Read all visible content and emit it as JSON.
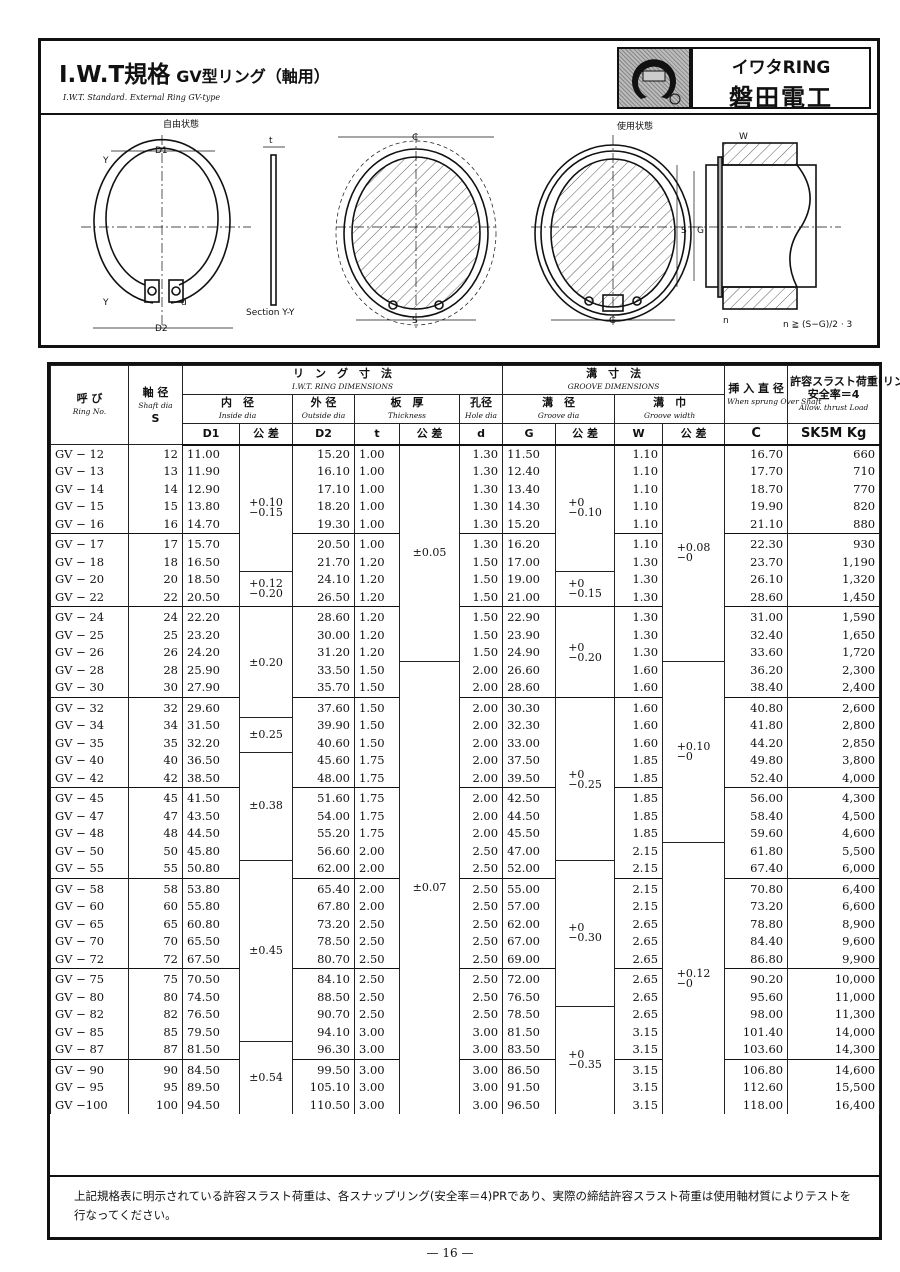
{
  "header": {
    "title": "I.W.T規格",
    "title_sub": "GV型リング（軸用）",
    "subtitle": "I.W.T. Standard. External Ring  GV-type",
    "logo_text": "I.W.T",
    "brand_line1": "イワタRING",
    "brand_line2": "磐田電工"
  },
  "diagram": {
    "free_state": "自由状態",
    "used_state": "使用状態",
    "D1": "D1",
    "D2": "D2",
    "Y": "Y",
    "t": "t",
    "d": "d",
    "section": "Section  Y-Y",
    "C": "C",
    "S": "S",
    "G": "G",
    "W": "W",
    "n": "n",
    "formula": "n ≧ (S−G)/2 · 3"
  },
  "table": {
    "h_ring": "呼 び",
    "h_ring_en": "Ring No.",
    "h_shaft": "軸 径",
    "h_shaft_en": "Shaft dia",
    "h_shaft_sym": "S",
    "h_ringdim": "リ　ン　グ　寸　法",
    "h_ringdim_en": "I.W.T. RING DIMENSIONS",
    "h_groove": "溝　寸　法",
    "h_groove_en": "GROOVE DIMENSIONS",
    "h_c": "挿 入 直 径",
    "h_c_en": "When sprung Over Shaft",
    "h_c_sym": "C",
    "h_load": "許容スラスト荷重(リング)",
    "h_load2": "安全率＝4",
    "h_load_en": "Allow. thrust Load",
    "h_load_unit": "SK5M Kg",
    "h_inside": "内　径",
    "h_inside_en": "Inside dia",
    "h_outside": "外 径",
    "h_outside_en": "Outside dia",
    "h_thick": "板　厚",
    "h_thick_en": "Thickness",
    "h_hole": "孔径",
    "h_hole_en": "Hole dia",
    "h_gdia": "溝　径",
    "h_gdia_en": "Groove dia",
    "h_gwidth": "溝　巾",
    "h_gwidth_en": "Groove width",
    "s_D1": "D1",
    "s_D2": "D2",
    "s_t": "t",
    "s_d": "d",
    "s_G": "G",
    "s_W": "W",
    "s_tol": "公 差",
    "sections": [
      5,
      4,
      5,
      5,
      5,
      5,
      5,
      3
    ],
    "rows": [
      [
        "GV − 12",
        "12",
        "11.00",
        "15.20",
        "1.00",
        "1.30",
        "11.50",
        "1.10",
        "16.70",
        "660"
      ],
      [
        "GV − 13",
        "13",
        "11.90",
        "16.10",
        "1.00",
        "1.30",
        "12.40",
        "1.10",
        "17.70",
        "710"
      ],
      [
        "GV − 14",
        "14",
        "12.90",
        "17.10",
        "1.00",
        "1.30",
        "13.40",
        "1.10",
        "18.70",
        "770"
      ],
      [
        "GV − 15",
        "15",
        "13.80",
        "18.20",
        "1.00",
        "1.30",
        "14.30",
        "1.10",
        "19.90",
        "820"
      ],
      [
        "GV − 16",
        "16",
        "14.70",
        "19.30",
        "1.00",
        "1.30",
        "15.20",
        "1.10",
        "21.10",
        "880"
      ],
      [
        "GV − 17",
        "17",
        "15.70",
        "20.50",
        "1.00",
        "1.30",
        "16.20",
        "1.10",
        "22.30",
        "930"
      ],
      [
        "GV − 18",
        "18",
        "16.50",
        "21.70",
        "1.20",
        "1.50",
        "17.00",
        "1.30",
        "23.70",
        "1,190"
      ],
      [
        "GV − 20",
        "20",
        "18.50",
        "24.10",
        "1.20",
        "1.50",
        "19.00",
        "1.30",
        "26.10",
        "1,320"
      ],
      [
        "GV − 22",
        "22",
        "20.50",
        "26.50",
        "1.20",
        "1.50",
        "21.00",
        "1.30",
        "28.60",
        "1,450"
      ],
      [
        "GV − 24",
        "24",
        "22.20",
        "28.60",
        "1.20",
        "1.50",
        "22.90",
        "1.30",
        "31.00",
        "1,590"
      ],
      [
        "GV − 25",
        "25",
        "23.20",
        "30.00",
        "1.20",
        "1.50",
        "23.90",
        "1.30",
        "32.40",
        "1,650"
      ],
      [
        "GV − 26",
        "26",
        "24.20",
        "31.20",
        "1.20",
        "1.50",
        "24.90",
        "1.30",
        "33.60",
        "1,720"
      ],
      [
        "GV − 28",
        "28",
        "25.90",
        "33.50",
        "1.50",
        "2.00",
        "26.60",
        "1.60",
        "36.20",
        "2,300"
      ],
      [
        "GV − 30",
        "30",
        "27.90",
        "35.70",
        "1.50",
        "2.00",
        "28.60",
        "1.60",
        "38.40",
        "2,400"
      ],
      [
        "GV − 32",
        "32",
        "29.60",
        "37.60",
        "1.50",
        "2.00",
        "30.30",
        "1.60",
        "40.80",
        "2,600"
      ],
      [
        "GV − 34",
        "34",
        "31.50",
        "39.90",
        "1.50",
        "2.00",
        "32.30",
        "1.60",
        "41.80",
        "2,800"
      ],
      [
        "GV − 35",
        "35",
        "32.20",
        "40.60",
        "1.50",
        "2.00",
        "33.00",
        "1.60",
        "44.20",
        "2,850"
      ],
      [
        "GV − 40",
        "40",
        "36.50",
        "45.60",
        "1.75",
        "2.00",
        "37.50",
        "1.85",
        "49.80",
        "3,800"
      ],
      [
        "GV − 42",
        "42",
        "38.50",
        "48.00",
        "1.75",
        "2.00",
        "39.50",
        "1.85",
        "52.40",
        "4,000"
      ],
      [
        "GV − 45",
        "45",
        "41.50",
        "51.60",
        "1.75",
        "2.00",
        "42.50",
        "1.85",
        "56.00",
        "4,300"
      ],
      [
        "GV − 47",
        "47",
        "43.50",
        "54.00",
        "1.75",
        "2.00",
        "44.50",
        "1.85",
        "58.40",
        "4,500"
      ],
      [
        "GV − 48",
        "48",
        "44.50",
        "55.20",
        "1.75",
        "2.00",
        "45.50",
        "1.85",
        "59.60",
        "4,600"
      ],
      [
        "GV − 50",
        "50",
        "45.80",
        "56.60",
        "2.00",
        "2.50",
        "47.00",
        "2.15",
        "61.80",
        "5,500"
      ],
      [
        "GV − 55",
        "55",
        "50.80",
        "62.00",
        "2.00",
        "2.50",
        "52.00",
        "2.15",
        "67.40",
        "6,000"
      ],
      [
        "GV − 58",
        "58",
        "53.80",
        "65.40",
        "2.00",
        "2.50",
        "55.00",
        "2.15",
        "70.80",
        "6,400"
      ],
      [
        "GV − 60",
        "60",
        "55.80",
        "67.80",
        "2.00",
        "2.50",
        "57.00",
        "2.15",
        "73.20",
        "6,600"
      ],
      [
        "GV − 65",
        "65",
        "60.80",
        "73.20",
        "2.50",
        "2.50",
        "62.00",
        "2.65",
        "78.80",
        "8,900"
      ],
      [
        "GV − 70",
        "70",
        "65.50",
        "78.50",
        "2.50",
        "2.50",
        "67.00",
        "2.65",
        "84.40",
        "9,600"
      ],
      [
        "GV − 72",
        "72",
        "67.50",
        "80.70",
        "2.50",
        "2.50",
        "69.00",
        "2.65",
        "86.80",
        "9,900"
      ],
      [
        "GV − 75",
        "75",
        "70.50",
        "84.10",
        "2.50",
        "2.50",
        "72.00",
        "2.65",
        "90.20",
        "10,000"
      ],
      [
        "GV − 80",
        "80",
        "74.50",
        "88.50",
        "2.50",
        "2.50",
        "76.50",
        "2.65",
        "95.60",
        "11,000"
      ],
      [
        "GV − 82",
        "82",
        "76.50",
        "90.70",
        "2.50",
        "2.50",
        "78.50",
        "2.65",
        "98.00",
        "11,300"
      ],
      [
        "GV − 85",
        "85",
        "79.50",
        "94.10",
        "3.00",
        "3.00",
        "81.50",
        "3.15",
        "101.40",
        "14,000"
      ],
      [
        "GV − 87",
        "87",
        "81.50",
        "96.30",
        "3.00",
        "3.00",
        "83.50",
        "3.15",
        "103.60",
        "14,300"
      ],
      [
        "GV − 90",
        "90",
        "84.50",
        "99.50",
        "3.00",
        "3.00",
        "86.50",
        "3.15",
        "106.80",
        "14,600"
      ],
      [
        "GV − 95",
        "95",
        "89.50",
        "105.10",
        "3.00",
        "3.00",
        "91.50",
        "3.15",
        "112.60",
        "15,500"
      ],
      [
        "GV −100",
        "100",
        "94.50",
        "110.50",
        "3.00",
        "3.00",
        "96.50",
        "3.15",
        "118.00",
        "16,400"
      ]
    ],
    "tol_D1": [
      {
        "rows": 7,
        "upper": "+0.10",
        "lower": "−0.15"
      },
      {
        "rows": 2,
        "upper": "+0.12",
        "lower": "−0.20"
      },
      {
        "rows": 6,
        "value": "±0.20"
      },
      {
        "rows": 2,
        "value": "±0.25"
      },
      {
        "rows": 6,
        "value": "±0.38"
      },
      {
        "rows": 10,
        "value": "±0.45"
      },
      {
        "rows": 4,
        "value": "±0.54"
      }
    ],
    "tol_t": [
      {
        "rows": 12,
        "value": "±0.05"
      },
      {
        "rows": 25,
        "value": "±0.07"
      }
    ],
    "tol_G": [
      {
        "rows": 7,
        "upper": "+0",
        "lower": "−0.10"
      },
      {
        "rows": 2,
        "upper": "+0",
        "lower": "−0.15"
      },
      {
        "rows": 5,
        "upper": "+0",
        "lower": "−0.20"
      },
      {
        "rows": 9,
        "upper": "+0",
        "lower": "−0.25"
      },
      {
        "rows": 8,
        "upper": "+0",
        "lower": "−0.30"
      },
      {
        "rows": 6,
        "upper": "+0",
        "lower": "−0.35"
      }
    ],
    "tol_W": [
      {
        "rows": 12,
        "upper": "+0.08",
        "lower": "−0"
      },
      {
        "rows": 10,
        "upper": "+0.10",
        "lower": "−0"
      },
      {
        "rows": 15,
        "upper": "+0.12",
        "lower": "−0"
      }
    ]
  },
  "note": "上記規格表に明示されている許容スラスト荷重は、各スナップリング(安全率＝4)PRであり、実際の締結許容スラスト荷重は使用軸材質によりテストを行なってください。",
  "page_number": "— 16 —"
}
